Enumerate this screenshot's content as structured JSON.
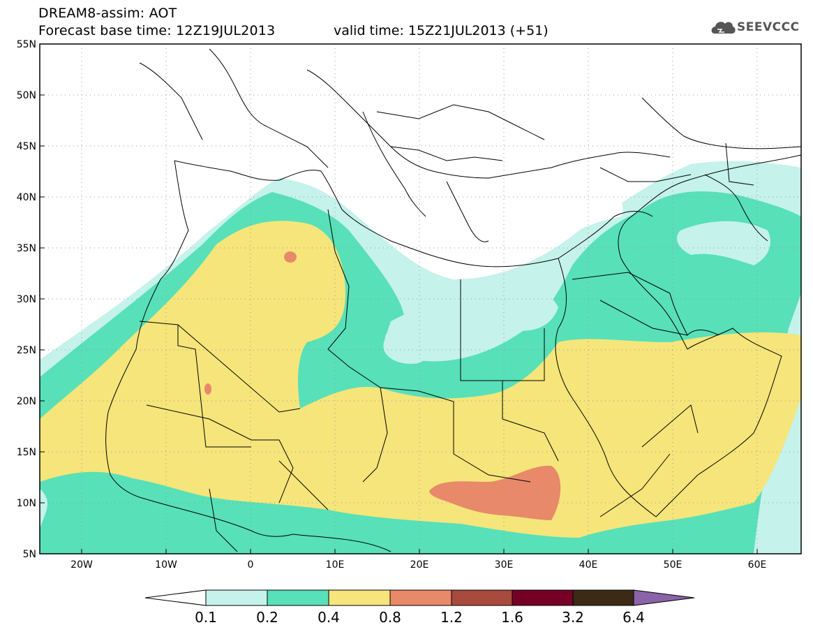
{
  "header": {
    "title_line1": "DREAM8-assim: AOT",
    "title_line2": "Forecast base time: 12Z19JUL2013",
    "valid_time": "valid time: 15Z21JUL2013 (+51)",
    "logo_text": "SEEVCCC"
  },
  "map": {
    "lat_labels": [
      "55N",
      "50N",
      "45N",
      "40N",
      "35N",
      "30N",
      "25N",
      "20N",
      "15N",
      "10N",
      "5N"
    ],
    "lon_labels": [
      "20W",
      "10W",
      "0",
      "10E",
      "20E",
      "30E",
      "40E",
      "50E",
      "60E"
    ],
    "lon_range": [
      -25,
      65
    ],
    "lat_range": [
      5,
      55
    ]
  },
  "colorbar": {
    "labels": [
      "0.1",
      "0.2",
      "0.4",
      "0.8",
      "1.2",
      "1.6",
      "3.2",
      "6.4"
    ],
    "colors": [
      "#ffffff",
      "#c5f2ea",
      "#58e0b8",
      "#f5e57a",
      "#e8896a",
      "#a84a3c",
      "#760025",
      "#3d2a15",
      "#8a63a8"
    ]
  }
}
